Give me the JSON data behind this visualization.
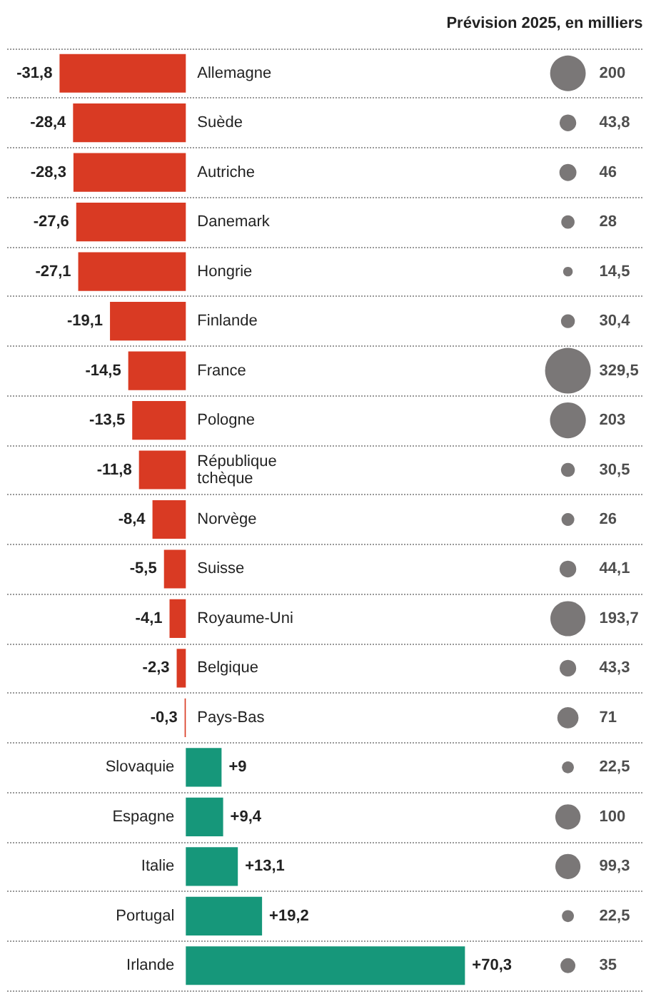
{
  "chart_data": [
    {
      "type": "bar",
      "orientation": "horizontal",
      "categories": [
        "Allemagne",
        "Suède",
        "Autriche",
        "Danemark",
        "Hongrie",
        "Finlande",
        "France",
        "Pologne",
        "République tchèque",
        "Norvège",
        "Suisse",
        "Royaume-Uni",
        "Belgique",
        "Pays-Bas",
        "Slovaquie",
        "Espagne",
        "Italie",
        "Portugal",
        "Irlande"
      ],
      "values": [
        -31.8,
        -28.4,
        -28.3,
        -27.6,
        -27.1,
        -19.1,
        -14.5,
        -13.5,
        -11.8,
        -8.4,
        -5.5,
        -4.1,
        -2.3,
        -0.3,
        9,
        9.4,
        13.1,
        19.2,
        70.3
      ],
      "value_labels": [
        "-31,8",
        "-28,4",
        "-28,3",
        "-27,6",
        "-27,1",
        "-19,1",
        "-14,5",
        "-13,5",
        "-11,8",
        "-8,4",
        "-5,5",
        "-4,1",
        "-2,3",
        "-0,3",
        "+9",
        "+9,4",
        "+13,1",
        "+19,2",
        "+70,3"
      ],
      "colors": [
        "#d93a23",
        "#d93a23",
        "#d93a23",
        "#d93a23",
        "#d93a23",
        "#d93a23",
        "#d93a23",
        "#d93a23",
        "#d93a23",
        "#d93a23",
        "#d93a23",
        "#d93a23",
        "#d93a23",
        "#d93a23",
        "#16977a",
        "#16977a",
        "#16977a",
        "#16977a",
        "#16977a"
      ],
      "xlim": [
        -45,
        115
      ],
      "tick_labels": "y",
      "grid": "y"
    },
    {
      "type": "other",
      "title": "Prévision 2025, en milliers",
      "values": [
        200,
        43.8,
        46,
        28,
        14.5,
        30.4,
        329.5,
        203,
        30.5,
        26,
        44.1,
        193.7,
        43.3,
        71,
        22.5,
        100,
        99.3,
        22.5,
        35
      ],
      "value_labels": [
        "200",
        "43,8",
        "46",
        "28",
        "14,5",
        "30,4",
        "329,5",
        "203",
        "30,5",
        "26",
        "44,1",
        "193,7",
        "43,3",
        "71",
        "22,5",
        "100",
        "99,3",
        "22,5",
        "35"
      ],
      "color": "#595555"
    }
  ]
}
